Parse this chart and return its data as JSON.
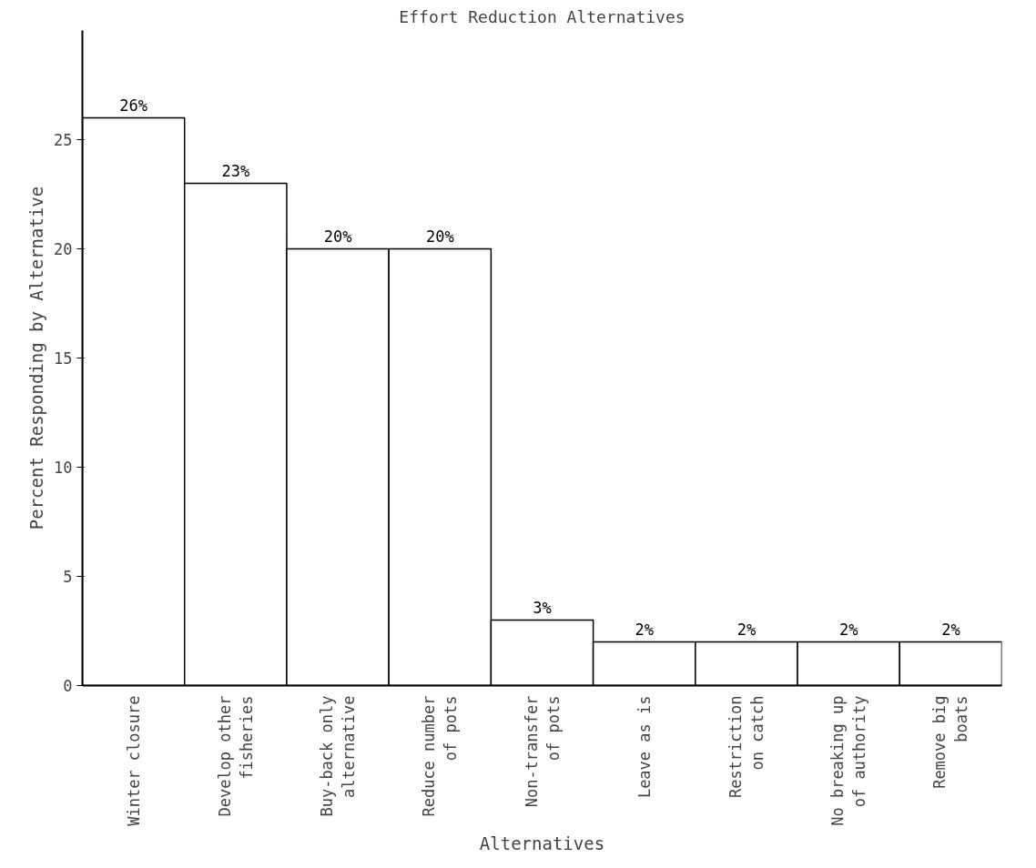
{
  "chart_data": {
    "type": "bar",
    "title": "Effort Reduction Alternatives",
    "xlabel": "Alternatives",
    "ylabel": "Percent Responding by Alternative",
    "categories": [
      "Winter closure",
      "Develop other\nfisheries",
      "Buy-back only\nalternative",
      "Reduce number\nof pots",
      "Non-transfer\nof pots",
      "Leave as is",
      "Restriction\non catch",
      "No breaking up\nof authority",
      "Remove big\nboats"
    ],
    "values": [
      26,
      23,
      20,
      20,
      3,
      2,
      2,
      2,
      2
    ],
    "value_labels": [
      "26%",
      "23%",
      "20%",
      "20%",
      "3%",
      "2%",
      "2%",
      "2%",
      "2%"
    ],
    "color": "#ffffff",
    "ylim": [
      0,
      30
    ],
    "yticks": [
      0,
      5,
      10,
      15,
      20,
      25
    ],
    "grid": false
  }
}
